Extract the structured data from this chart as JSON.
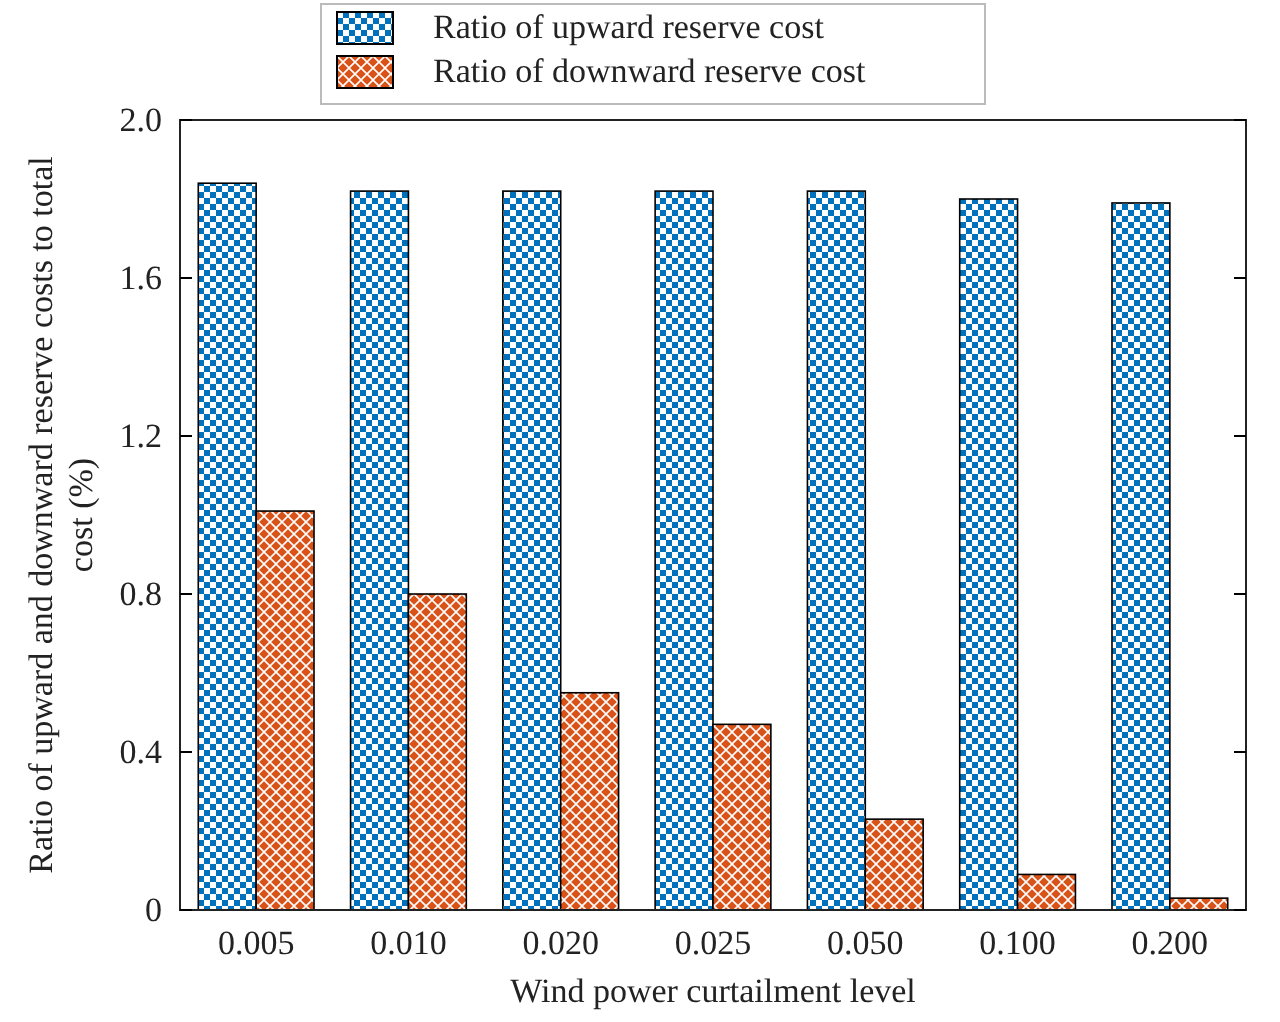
{
  "chart_data": {
    "type": "bar",
    "xlabel": "Wind power curtailment level",
    "ylabel": "Ratio of upward and downward reserve costs to total cost (%)",
    "categories": [
      "0.005",
      "0.010",
      "0.020",
      "0.025",
      "0.050",
      "0.100",
      "0.200"
    ],
    "series": [
      {
        "name": "Ratio of upward reserve cost",
        "color": "#0072bd",
        "values": [
          1.84,
          1.82,
          1.82,
          1.82,
          1.82,
          1.8,
          1.79
        ]
      },
      {
        "name": "Ratio of downward reserve cost",
        "color": "#d95319",
        "values": [
          1.01,
          0.8,
          0.55,
          0.47,
          0.23,
          0.09,
          0.03
        ]
      }
    ],
    "ylim": [
      0,
      2.0
    ],
    "yticks": [
      0,
      0.4,
      0.8,
      1.2,
      1.6,
      {
        "value": 2,
        "label": "2.0"
      }
    ],
    "grid": false,
    "legend": "top"
  }
}
